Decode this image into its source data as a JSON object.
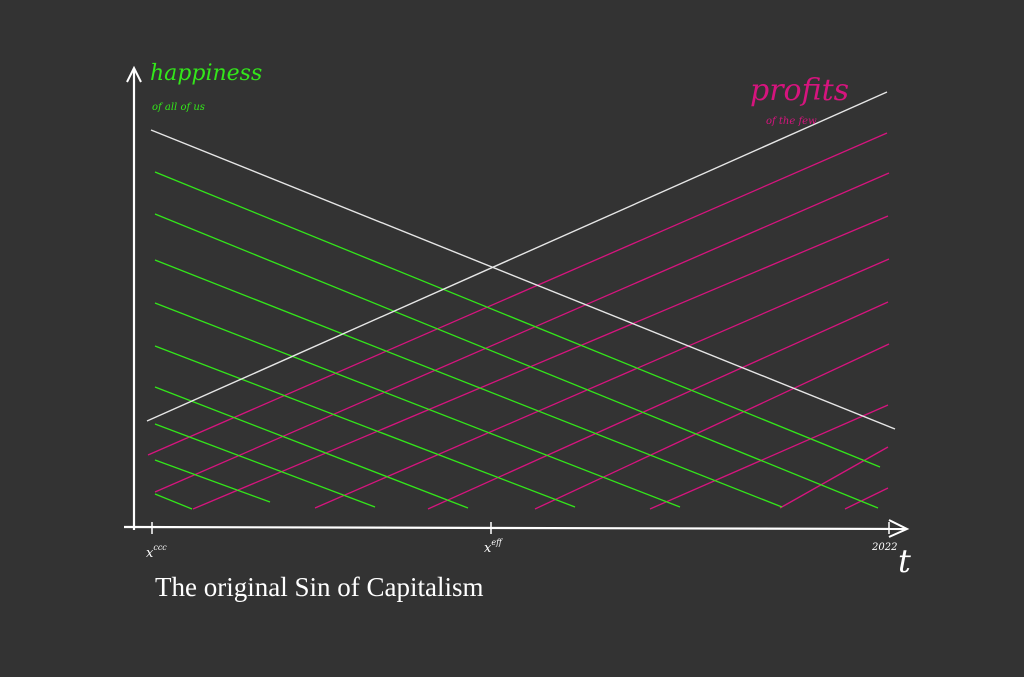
{
  "diagram": {
    "y_label": "happiness",
    "y_sublabel": "of all of us",
    "x_label": "t",
    "right_label": "profits",
    "right_sublabel": "of the few",
    "tick_left": "x",
    "tick_left_sup": "ccc",
    "tick_mid": "x",
    "tick_mid_sup": "eff",
    "tick_right": "2022",
    "caption": "The original Sin of Capitalism",
    "colors": {
      "background": "#333333",
      "axis": "#ffffff",
      "happiness": "#33e61a",
      "profits": "#d6147e",
      "main_lines": "#e6e6e6"
    }
  }
}
